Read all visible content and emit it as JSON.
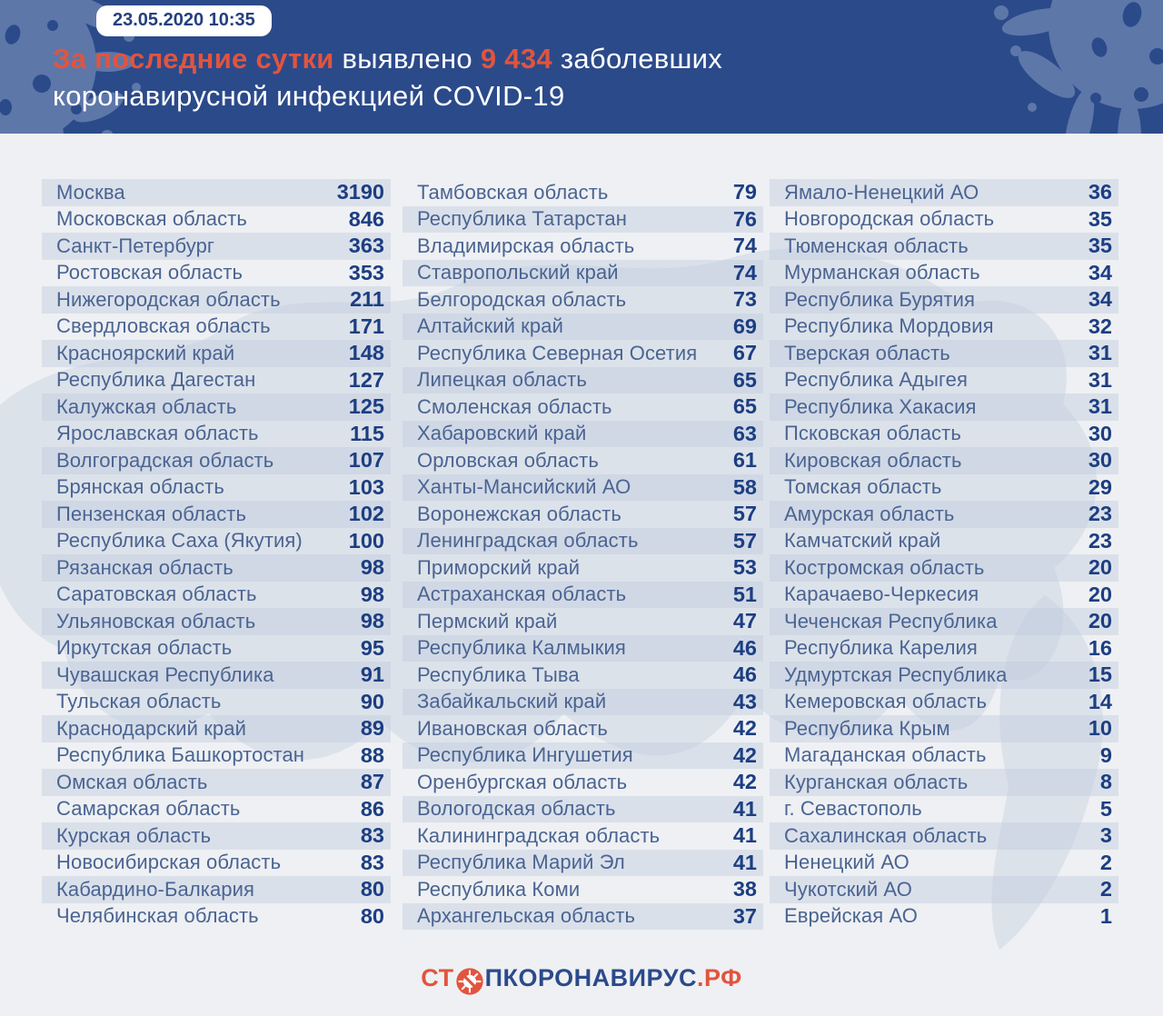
{
  "header": {
    "badge": "23.05.2020 10:35",
    "title_seg1": "За последние сутки",
    "title_seg2": " выявлено ",
    "title_seg3": "9 434",
    "title_seg4": " заболевших",
    "title_line2": "коронавирусной инфекцией COVID-19"
  },
  "footer": {
    "logo_prefix": "СТ",
    "logo_icon": "no-virus-icon",
    "logo_text": "ПКОРОНАВИРУС",
    "logo_domain": ".РФ"
  },
  "colors": {
    "header_blue": "#2b4a8a",
    "splat_blue": "#5d77a9",
    "accent_orange": "#e2543e",
    "label_blue": "#4a6492",
    "number_navy": "#1c3e82",
    "band": "#e3e8f0",
    "background": "#eef0f3"
  },
  "chart_data": {
    "type": "table",
    "title": "За последние сутки выявлено 9 434 заболевших коронавирусной инфекцией COVID-19",
    "timestamp": "23.05.2020 10:35",
    "total_new_cases": "9 434",
    "layout": "3 columns x 28 rows, column-major, sorted descending",
    "rows": [
      [
        "Москва",
        3190
      ],
      [
        "Московская область",
        846
      ],
      [
        "Санкт-Петербург",
        363
      ],
      [
        "Ростовская область",
        353
      ],
      [
        "Нижегородская область",
        211
      ],
      [
        "Свердловская область",
        171
      ],
      [
        "Красноярский край",
        148
      ],
      [
        "Республика Дагестан",
        127
      ],
      [
        "Калужская область",
        125
      ],
      [
        "Ярославская область",
        115
      ],
      [
        "Волгоградская область",
        107
      ],
      [
        "Брянская область",
        103
      ],
      [
        "Пензенская область",
        102
      ],
      [
        "Республика Саха (Якутия)",
        100
      ],
      [
        "Рязанская область",
        98
      ],
      [
        "Саратовская область",
        98
      ],
      [
        "Ульяновская область",
        98
      ],
      [
        "Иркутская область",
        95
      ],
      [
        "Чувашская Республика",
        91
      ],
      [
        "Тульская область",
        90
      ],
      [
        "Краснодарский край",
        89
      ],
      [
        "Республика Башкортостан",
        88
      ],
      [
        "Омская область",
        87
      ],
      [
        "Самарская область",
        86
      ],
      [
        "Курская область",
        83
      ],
      [
        "Новосибирская область",
        83
      ],
      [
        "Кабардино-Балкария",
        80
      ],
      [
        "Челябинская область",
        80
      ],
      [
        "Тамбовская область",
        79
      ],
      [
        "Республика Татарстан",
        76
      ],
      [
        "Владимирская область",
        74
      ],
      [
        "Ставропольский край",
        74
      ],
      [
        "Белгородская область",
        73
      ],
      [
        "Алтайский край",
        69
      ],
      [
        "Республика Северная Осетия",
        67
      ],
      [
        "Липецкая область",
        65
      ],
      [
        "Смоленская область",
        65
      ],
      [
        "Хабаровский край",
        63
      ],
      [
        "Орловская область",
        61
      ],
      [
        "Ханты-Мансийский АО",
        58
      ],
      [
        "Воронежская область",
        57
      ],
      [
        "Ленинградская область",
        57
      ],
      [
        "Приморский край",
        53
      ],
      [
        "Астраханская область",
        51
      ],
      [
        "Пермский край",
        47
      ],
      [
        "Республика Калмыкия",
        46
      ],
      [
        "Республика Тыва",
        46
      ],
      [
        "Забайкальский край",
        43
      ],
      [
        "Ивановская область",
        42
      ],
      [
        "Республика Ингушетия",
        42
      ],
      [
        "Оренбургская область",
        42
      ],
      [
        "Вологодская область",
        41
      ],
      [
        "Калининградская область",
        41
      ],
      [
        "Республика Марий Эл",
        41
      ],
      [
        "Республика Коми",
        38
      ],
      [
        "Архангельская область",
        37
      ],
      [
        "Ямало-Ненецкий АО",
        36
      ],
      [
        "Новгородская область",
        35
      ],
      [
        "Тюменская область",
        35
      ],
      [
        "Мурманская область",
        34
      ],
      [
        "Республика Бурятия",
        34
      ],
      [
        "Республика Мордовия",
        32
      ],
      [
        "Тверская область",
        31
      ],
      [
        "Республика Адыгея",
        31
      ],
      [
        "Республика Хакасия",
        31
      ],
      [
        "Псковская область",
        30
      ],
      [
        "Кировская область",
        30
      ],
      [
        "Томская область",
        29
      ],
      [
        "Амурская область",
        23
      ],
      [
        "Камчатский край",
        23
      ],
      [
        "Костромская область",
        20
      ],
      [
        "Карачаево-Черкесия",
        20
      ],
      [
        "Чеченская Республика",
        20
      ],
      [
        "Республика Карелия",
        16
      ],
      [
        "Удмуртская Республика",
        15
      ],
      [
        "Кемеровская область",
        14
      ],
      [
        "Республика Крым",
        10
      ],
      [
        "Магаданская область",
        9
      ],
      [
        "Курганская область",
        8
      ],
      [
        "г. Севастополь",
        5
      ],
      [
        "Сахалинская область",
        3
      ],
      [
        "Ненецкий АО",
        2
      ],
      [
        "Чукотский АО",
        2
      ],
      [
        "Еврейская АО",
        1
      ]
    ]
  }
}
